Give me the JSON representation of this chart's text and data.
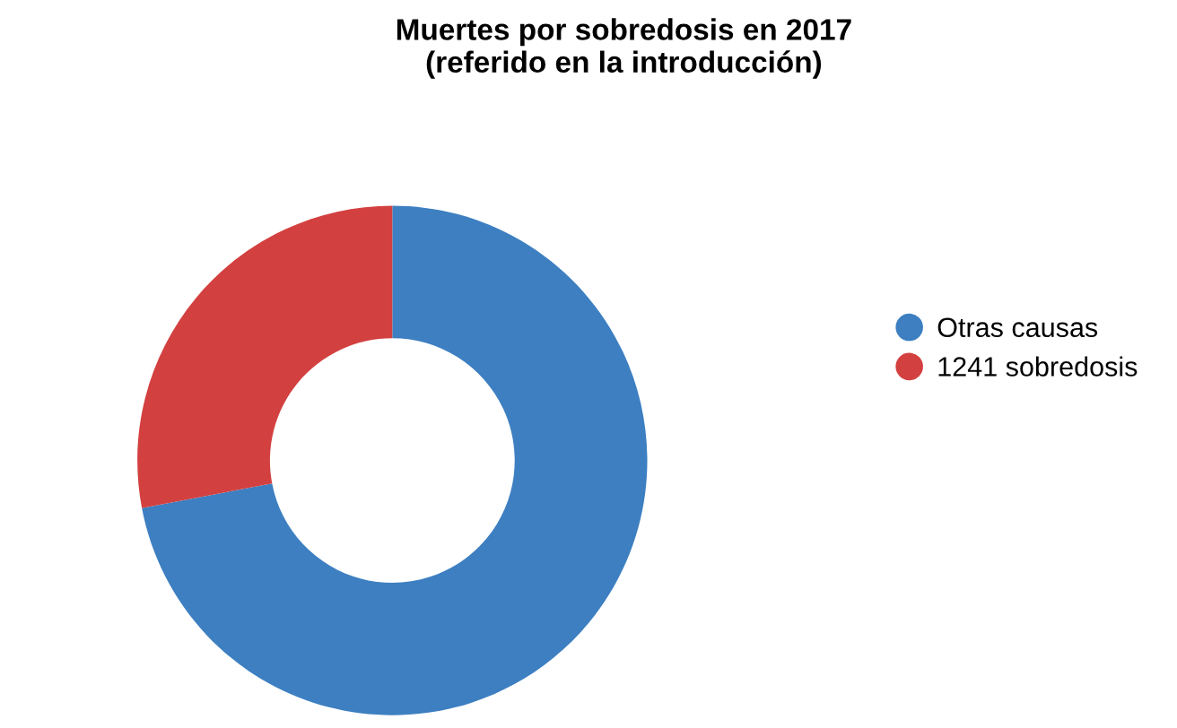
{
  "chart_data": {
    "type": "donut",
    "title": "Muertes por sobredosis en 2017\n(referido en la introducción)",
    "categories": [
      "Otras causas",
      "1241 sobredosis"
    ],
    "values": [
      72,
      28
    ],
    "colors": [
      "#3d7fc1",
      "#d34040"
    ],
    "legend": "right"
  }
}
